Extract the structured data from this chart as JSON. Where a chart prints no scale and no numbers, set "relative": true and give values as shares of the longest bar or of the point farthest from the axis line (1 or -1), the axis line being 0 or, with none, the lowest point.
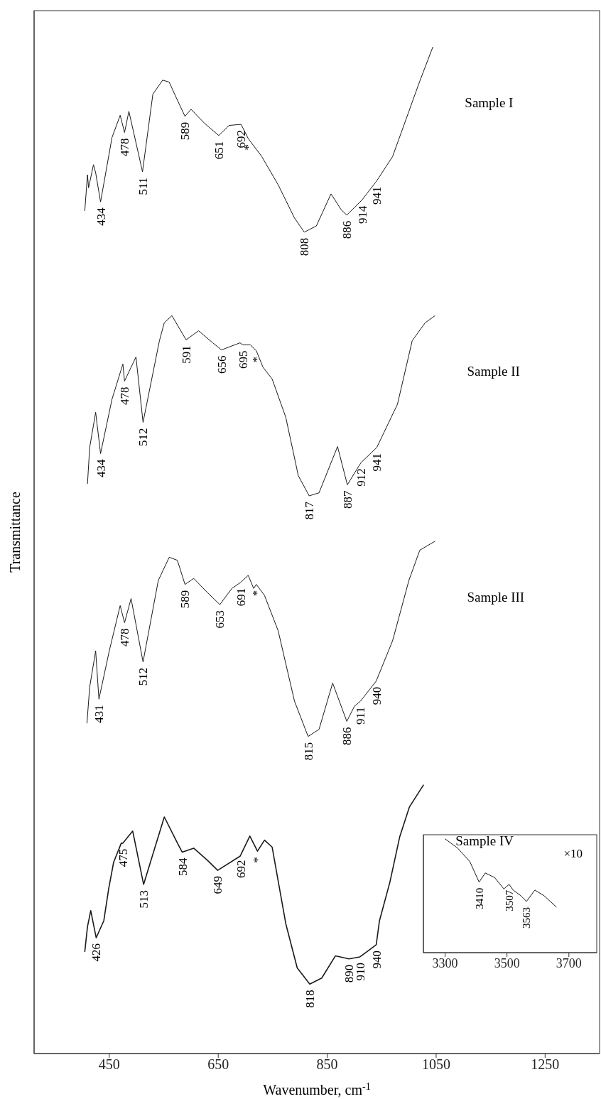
{
  "chart_data": [
    {
      "type": "line",
      "relative": true,
      "xlabel": "Wavenumber, cm$^{-1}$",
      "ylabel": "Transmittance",
      "xlim": [
        312,
        1350
      ],
      "xticks": [
        450,
        650,
        850,
        1050,
        1250
      ],
      "tick_labels": "x",
      "series": [
        {
          "name": "Sample I",
          "color": "#1a1a1a",
          "x": [
            405,
            410,
            412,
            421,
            425,
            434,
            455,
            470,
            478,
            486,
            511,
            530,
            548,
            560,
            570,
            589,
            600,
            625,
            651,
            670,
            692,
            705,
            730,
            760,
            790,
            808,
            830,
            857,
            876,
            886,
            914,
            941,
            970,
            1000,
            1020,
            1044
          ],
          "values": [
            0.837,
            0.873,
            0.86,
            0.883,
            0.875,
            0.846,
            0.91,
            0.932,
            0.915,
            0.936,
            0.876,
            0.953,
            0.967,
            0.965,
            0.953,
            0.931,
            0.938,
            0.924,
            0.912,
            0.922,
            0.923,
            0.909,
            0.891,
            0.863,
            0.83,
            0.816,
            0.822,
            0.854,
            0.838,
            0.833,
            0.848,
            0.867,
            0.891,
            0.936,
            0.966,
            1.0
          ]
        },
        {
          "name": "Sample II",
          "color": "#1a1a1a",
          "x": [
            410,
            414,
            425,
            434,
            455,
            475,
            478,
            499,
            512,
            542,
            551,
            565,
            591,
            614,
            640,
            656,
            690,
            695,
            709,
            720,
            732,
            749,
            774,
            797,
            817,
            835,
            869,
            887,
            912,
            941,
            979,
            1006,
            1030,
            1048
          ],
          "values": [
            0.566,
            0.602,
            0.637,
            0.596,
            0.65,
            0.685,
            0.668,
            0.692,
            0.627,
            0.708,
            0.726,
            0.733,
            0.709,
            0.718,
            0.706,
            0.699,
            0.706,
            0.704,
            0.704,
            0.698,
            0.682,
            0.67,
            0.632,
            0.574,
            0.554,
            0.557,
            0.603,
            0.565,
            0.587,
            0.602,
            0.645,
            0.708,
            0.726,
            0.733
          ]
        },
        {
          "name": "Sample III",
          "color": "#1a1a1a",
          "x": [
            409,
            414,
            425,
            431,
            450,
            470,
            478,
            490,
            512,
            540,
            560,
            575,
            589,
            605,
            630,
            653,
            675,
            691,
            705,
            715,
            720,
            735,
            760,
            790,
            815,
            835,
            860,
            886,
            900,
            911,
            940,
            970,
            1000,
            1020,
            1048
          ],
          "values": [
            0.328,
            0.364,
            0.4,
            0.352,
            0.4,
            0.445,
            0.428,
            0.452,
            0.389,
            0.47,
            0.493,
            0.49,
            0.466,
            0.472,
            0.458,
            0.446,
            0.462,
            0.468,
            0.475,
            0.462,
            0.466,
            0.455,
            0.42,
            0.35,
            0.315,
            0.322,
            0.368,
            0.33,
            0.345,
            0.35,
            0.37,
            0.41,
            0.47,
            0.5,
            0.509
          ]
        },
        {
          "name": "Sample IV",
          "color": "#1a1a1a",
          "x": [
            405,
            410,
            416,
            426,
            440,
            449,
            458,
            472,
            475,
            493,
            513,
            551,
            577,
            584,
            605,
            630,
            649,
            690,
            692,
            708,
            722,
            735,
            749,
            774,
            795,
            818,
            840,
            865,
            890,
            910,
            940,
            946,
            965,
            983,
            1001,
            1027
          ],
          "values": [
            0.101,
            0.126,
            0.142,
            0.115,
            0.132,
            0.164,
            0.19,
            0.209,
            0.209,
            0.221,
            0.168,
            0.235,
            0.207,
            0.2,
            0.204,
            0.192,
            0.182,
            0.196,
            0.198,
            0.216,
            0.201,
            0.212,
            0.205,
            0.129,
            0.085,
            0.069,
            0.075,
            0.097,
            0.094,
            0.096,
            0.108,
            0.132,
            0.17,
            0.215,
            0.245,
            0.267
          ]
        }
      ],
      "annotations": [
        {
          "text": "434",
          "x": 434,
          "y": 0.846
        },
        {
          "text": "478",
          "x": 478,
          "y": 0.915
        },
        {
          "text": "511",
          "x": 511,
          "y": 0.876
        },
        {
          "text": "589",
          "x": 589,
          "y": 0.931
        },
        {
          "text": "651",
          "x": 651,
          "y": 0.912
        },
        {
          "text": "692",
          "x": 692,
          "y": 0.923
        },
        {
          "text": "*",
          "x": 705,
          "y": 0.909
        },
        {
          "text": "808",
          "x": 808,
          "y": 0.816
        },
        {
          "text": "886",
          "x": 886,
          "y": 0.833
        },
        {
          "text": "914",
          "x": 914,
          "y": 0.848
        },
        {
          "text": "941",
          "x": 941,
          "y": 0.867
        },
        {
          "text": "434",
          "x": 434,
          "y": 0.596
        },
        {
          "text": "478",
          "x": 478,
          "y": 0.668
        },
        {
          "text": "512",
          "x": 512,
          "y": 0.627
        },
        {
          "text": "591",
          "x": 591,
          "y": 0.709
        },
        {
          "text": "656",
          "x": 656,
          "y": 0.699
        },
        {
          "text": "695",
          "x": 695,
          "y": 0.704
        },
        {
          "text": "*",
          "x": 720,
          "y": 0.698
        },
        {
          "text": "817",
          "x": 817,
          "y": 0.554
        },
        {
          "text": "887",
          "x": 887,
          "y": 0.565
        },
        {
          "text": "912",
          "x": 912,
          "y": 0.587
        },
        {
          "text": "941",
          "x": 941,
          "y": 0.602
        },
        {
          "text": "431",
          "x": 431,
          "y": 0.352
        },
        {
          "text": "478",
          "x": 478,
          "y": 0.428
        },
        {
          "text": "512",
          "x": 512,
          "y": 0.389
        },
        {
          "text": "589",
          "x": 589,
          "y": 0.466
        },
        {
          "text": "653",
          "x": 653,
          "y": 0.446
        },
        {
          "text": "691",
          "x": 691,
          "y": 0.468
        },
        {
          "text": "*",
          "x": 720,
          "y": 0.466
        },
        {
          "text": "815",
          "x": 815,
          "y": 0.315
        },
        {
          "text": "886",
          "x": 886,
          "y": 0.33
        },
        {
          "text": "911",
          "x": 911,
          "y": 0.35
        },
        {
          "text": "940",
          "x": 940,
          "y": 0.37
        },
        {
          "text": "426",
          "x": 426,
          "y": 0.115
        },
        {
          "text": "475",
          "x": 475,
          "y": 0.209
        },
        {
          "text": "513",
          "x": 513,
          "y": 0.168
        },
        {
          "text": "584",
          "x": 584,
          "y": 0.2
        },
        {
          "text": "649",
          "x": 649,
          "y": 0.182
        },
        {
          "text": "692",
          "x": 692,
          "y": 0.198
        },
        {
          "text": "*",
          "x": 722,
          "y": 0.201
        },
        {
          "text": "818",
          "x": 818,
          "y": 0.069
        },
        {
          "text": "890",
          "x": 890,
          "y": 0.094
        },
        {
          "text": "910",
          "x": 910,
          "y": 0.096
        },
        {
          "text": "940",
          "x": 940,
          "y": 0.108
        }
      ]
    },
    {
      "type": "line",
      "relative": true,
      "xlim": [
        3230,
        3790
      ],
      "xticks": [
        3300,
        3500,
        3700
      ],
      "tick_labels": "x",
      "series": [
        {
          "color": "#1a1a1a",
          "x": [
            3300,
            3340,
            3380,
            3410,
            3430,
            3460,
            3490,
            3507,
            3520,
            3545,
            3563,
            3590,
            3620,
            3660
          ],
          "values": [
            1.0,
            0.92,
            0.8,
            0.62,
            0.7,
            0.66,
            0.56,
            0.6,
            0.55,
            0.5,
            0.45,
            0.55,
            0.5,
            0.4
          ]
        }
      ],
      "annotations": [
        "×10",
        {
          "text": "3410",
          "x": 3410,
          "y": 0.62
        },
        {
          "text": "3507",
          "x": 3507,
          "y": 0.6
        },
        {
          "text": "3563",
          "x": 3563,
          "y": 0.45
        }
      ]
    }
  ]
}
